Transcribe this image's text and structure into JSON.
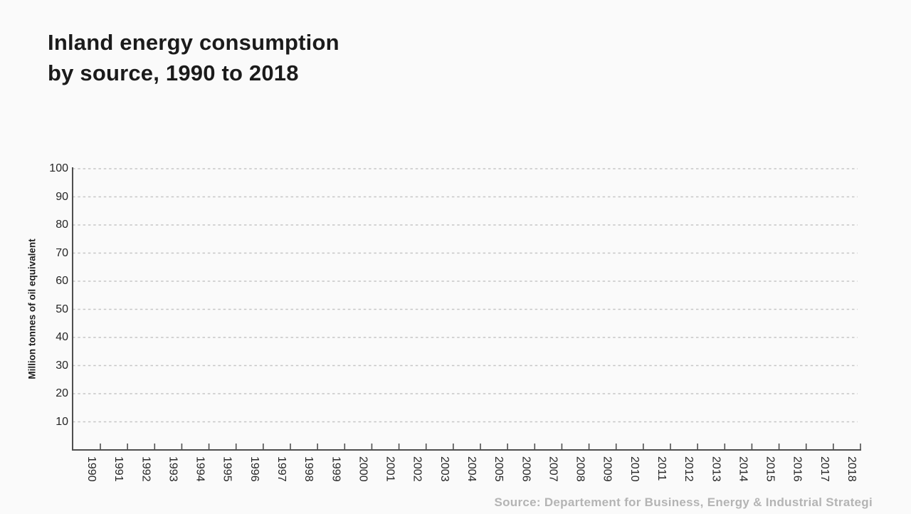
{
  "title": {
    "line1": "Inland energy consumption",
    "line2": "by source, 1990 to 2018"
  },
  "source_note": "Source: Departement for Business, Energy & Industrial Strategi",
  "chart_data": {
    "type": "line",
    "title": "Inland energy consumption by source, 1990 to 2018",
    "xlabel": "",
    "ylabel": "Million tonnes of oil equivalent",
    "categories": [
      "1990",
      "1991",
      "1992",
      "1993",
      "1994",
      "1995",
      "1996",
      "1997",
      "1998",
      "1999",
      "2000",
      "2001",
      "2002",
      "2003",
      "2004",
      "2005",
      "2006",
      "2007",
      "2008",
      "2009",
      "2010",
      "2011",
      "2012",
      "2013",
      "2014",
      "2015",
      "2016",
      "2017",
      "2018"
    ],
    "y_axis_ticks": [
      10,
      20,
      30,
      40,
      50,
      60,
      70,
      80,
      90,
      100
    ],
    "ylim": [
      0,
      100
    ],
    "grid": "horizontal dashed",
    "legend": "none",
    "series": []
  },
  "colors": {
    "background": "#fafafa",
    "title_text": "#1b1b1b",
    "tick_text": "#262626",
    "axis_line": "#4f4f4f",
    "gridline": "#c6c6c6",
    "source_text": "#b4b4b4"
  }
}
